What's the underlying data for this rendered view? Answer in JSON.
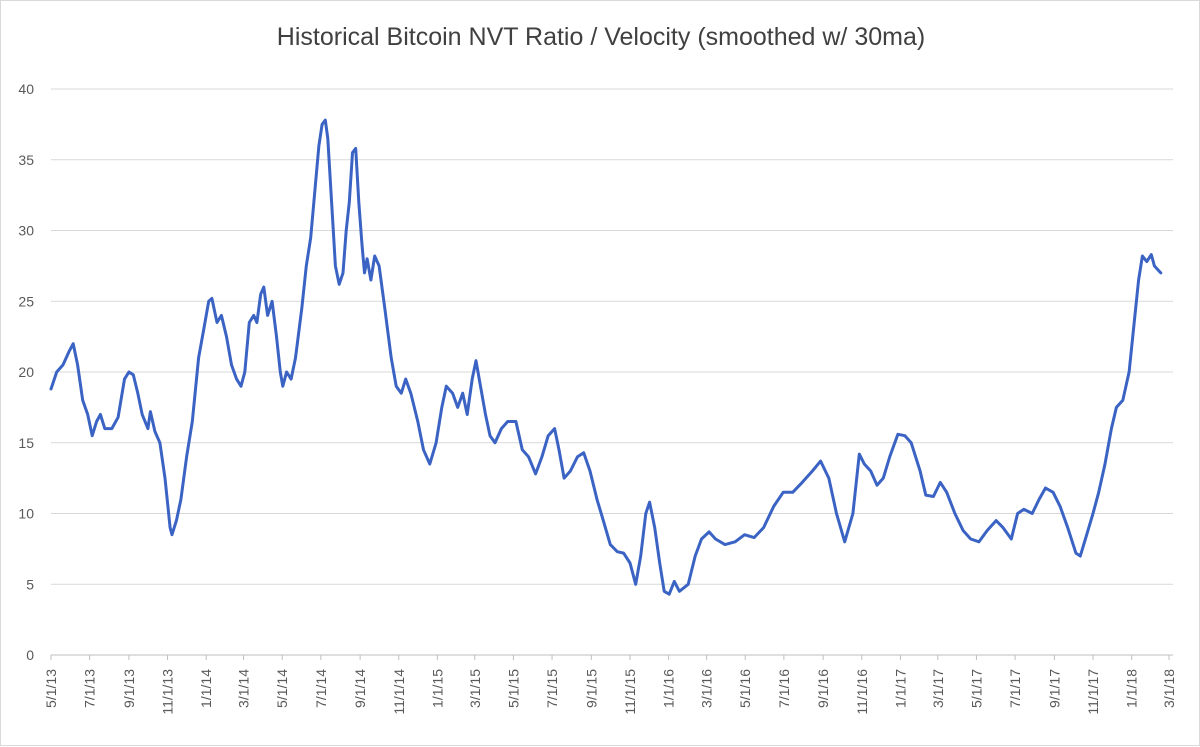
{
  "chart_data": {
    "type": "line",
    "title": "Historical Bitcoin NVT Ratio / Velocity (smoothed  w/ 30ma)",
    "xlabel": "",
    "ylabel": "",
    "ylim": [
      0,
      40
    ],
    "yticks": [
      0,
      5,
      10,
      15,
      20,
      25,
      30,
      35,
      40
    ],
    "xlim": [
      "2013-05-01",
      "2018-03-01"
    ],
    "xtick_labels": [
      "5/1/13",
      "7/1/13",
      "9/1/13",
      "11/1/13",
      "1/1/14",
      "3/1/14",
      "5/1/14",
      "7/1/14",
      "9/1/14",
      "11/1/14",
      "1/1/15",
      "3/1/15",
      "5/1/15",
      "7/1/15",
      "9/1/15",
      "11/1/15",
      "1/1/16",
      "3/1/16",
      "5/1/16",
      "7/1/16",
      "9/1/16",
      "11/1/16",
      "1/1/17",
      "3/1/17",
      "5/1/17",
      "7/1/17",
      "9/1/17",
      "11/1/17",
      "1/1/18",
      "3/1/18"
    ],
    "grid": true,
    "legend": "none",
    "series": [
      {
        "color": "#3a63c4",
        "points": [
          [
            "2013-05-01",
            18.8
          ],
          [
            "2013-05-10",
            20.0
          ],
          [
            "2013-05-20",
            20.5
          ],
          [
            "2013-05-30",
            21.5
          ],
          [
            "2013-06-05",
            22.0
          ],
          [
            "2013-06-12",
            20.5
          ],
          [
            "2013-06-20",
            18.0
          ],
          [
            "2013-06-28",
            17.0
          ],
          [
            "2013-07-05",
            15.5
          ],
          [
            "2013-07-12",
            16.5
          ],
          [
            "2013-07-18",
            17.0
          ],
          [
            "2013-07-25",
            16.0
          ],
          [
            "2013-08-05",
            16.0
          ],
          [
            "2013-08-15",
            16.8
          ],
          [
            "2013-08-25",
            19.5
          ],
          [
            "2013-09-01",
            20.0
          ],
          [
            "2013-09-08",
            19.8
          ],
          [
            "2013-09-15",
            18.5
          ],
          [
            "2013-09-22",
            17.0
          ],
          [
            "2013-10-01",
            16.0
          ],
          [
            "2013-10-05",
            17.2
          ],
          [
            "2013-10-12",
            15.8
          ],
          [
            "2013-10-20",
            15.0
          ],
          [
            "2013-10-28",
            12.5
          ],
          [
            "2013-11-05",
            9.0
          ],
          [
            "2013-11-08",
            8.5
          ],
          [
            "2013-11-15",
            9.5
          ],
          [
            "2013-11-22",
            11.0
          ],
          [
            "2013-12-01",
            14.0
          ],
          [
            "2013-12-10",
            16.5
          ],
          [
            "2013-12-20",
            21.0
          ],
          [
            "2013-12-28",
            23.0
          ],
          [
            "2014-01-05",
            25.0
          ],
          [
            "2014-01-10",
            25.2
          ],
          [
            "2014-01-18",
            23.5
          ],
          [
            "2014-01-25",
            24.0
          ],
          [
            "2014-02-02",
            22.5
          ],
          [
            "2014-02-10",
            20.5
          ],
          [
            "2014-02-18",
            19.5
          ],
          [
            "2014-02-25",
            19.0
          ],
          [
            "2014-03-03",
            20.0
          ],
          [
            "2014-03-10",
            23.5
          ],
          [
            "2014-03-17",
            24.0
          ],
          [
            "2014-03-22",
            23.5
          ],
          [
            "2014-03-28",
            25.5
          ],
          [
            "2014-04-02",
            26.0
          ],
          [
            "2014-04-08",
            24.0
          ],
          [
            "2014-04-15",
            25.0
          ],
          [
            "2014-04-22",
            22.5
          ],
          [
            "2014-04-28",
            20.0
          ],
          [
            "2014-05-02",
            19.0
          ],
          [
            "2014-05-08",
            20.0
          ],
          [
            "2014-05-15",
            19.5
          ],
          [
            "2014-05-22",
            21.0
          ],
          [
            "2014-06-01",
            24.5
          ],
          [
            "2014-06-08",
            27.5
          ],
          [
            "2014-06-15",
            29.5
          ],
          [
            "2014-06-22",
            33.0
          ],
          [
            "2014-06-28",
            36.0
          ],
          [
            "2014-07-03",
            37.5
          ],
          [
            "2014-07-08",
            37.8
          ],
          [
            "2014-07-12",
            36.5
          ],
          [
            "2014-07-18",
            32.0
          ],
          [
            "2014-07-24",
            27.5
          ],
          [
            "2014-07-30",
            26.2
          ],
          [
            "2014-08-05",
            27.0
          ],
          [
            "2014-08-10",
            30.0
          ],
          [
            "2014-08-15",
            32.0
          ],
          [
            "2014-08-20",
            35.5
          ],
          [
            "2014-08-25",
            35.8
          ],
          [
            "2014-08-30",
            32.0
          ],
          [
            "2014-09-04",
            29.0
          ],
          [
            "2014-09-08",
            27.0
          ],
          [
            "2014-09-12",
            28.0
          ],
          [
            "2014-09-18",
            26.5
          ],
          [
            "2014-09-24",
            28.2
          ],
          [
            "2014-10-01",
            27.5
          ],
          [
            "2014-10-10",
            24.5
          ],
          [
            "2014-10-20",
            21.0
          ],
          [
            "2014-10-28",
            19.0
          ],
          [
            "2014-11-05",
            18.5
          ],
          [
            "2014-11-12",
            19.5
          ],
          [
            "2014-11-20",
            18.5
          ],
          [
            "2014-12-01",
            16.5
          ],
          [
            "2014-12-10",
            14.5
          ],
          [
            "2014-12-20",
            13.5
          ],
          [
            "2014-12-30",
            15.0
          ],
          [
            "2015-01-08",
            17.5
          ],
          [
            "2015-01-15",
            19.0
          ],
          [
            "2015-01-25",
            18.5
          ],
          [
            "2015-02-02",
            17.5
          ],
          [
            "2015-02-10",
            18.5
          ],
          [
            "2015-02-17",
            17.0
          ],
          [
            "2015-02-25",
            19.5
          ],
          [
            "2015-03-03",
            20.8
          ],
          [
            "2015-03-10",
            19.0
          ],
          [
            "2015-03-18",
            17.0
          ],
          [
            "2015-03-25",
            15.5
          ],
          [
            "2015-04-02",
            15.0
          ],
          [
            "2015-04-12",
            16.0
          ],
          [
            "2015-04-22",
            16.5
          ],
          [
            "2015-05-05",
            16.5
          ],
          [
            "2015-05-15",
            14.5
          ],
          [
            "2015-05-25",
            14.0
          ],
          [
            "2015-06-05",
            12.8
          ],
          [
            "2015-06-15",
            14.0
          ],
          [
            "2015-06-25",
            15.5
          ],
          [
            "2015-07-05",
            16.0
          ],
          [
            "2015-07-12",
            14.5
          ],
          [
            "2015-07-20",
            12.5
          ],
          [
            "2015-07-30",
            13.0
          ],
          [
            "2015-08-10",
            14.0
          ],
          [
            "2015-08-20",
            14.3
          ],
          [
            "2015-08-30",
            13.0
          ],
          [
            "2015-09-10",
            11.0
          ],
          [
            "2015-09-20",
            9.5
          ],
          [
            "2015-10-01",
            7.8
          ],
          [
            "2015-10-12",
            7.3
          ],
          [
            "2015-10-22",
            7.2
          ],
          [
            "2015-11-01",
            6.5
          ],
          [
            "2015-11-10",
            5.0
          ],
          [
            "2015-11-18",
            7.0
          ],
          [
            "2015-11-26",
            10.0
          ],
          [
            "2015-12-02",
            10.8
          ],
          [
            "2015-12-10",
            9.0
          ],
          [
            "2015-12-18",
            6.5
          ],
          [
            "2015-12-25",
            4.5
          ],
          [
            "2016-01-02",
            4.3
          ],
          [
            "2016-01-10",
            5.2
          ],
          [
            "2016-01-18",
            4.5
          ],
          [
            "2016-02-01",
            5.0
          ],
          [
            "2016-02-12",
            7.0
          ],
          [
            "2016-02-22",
            8.2
          ],
          [
            "2016-03-05",
            8.7
          ],
          [
            "2016-03-15",
            8.2
          ],
          [
            "2016-03-30",
            7.8
          ],
          [
            "2016-04-15",
            8.0
          ],
          [
            "2016-04-30",
            8.5
          ],
          [
            "2016-05-15",
            8.3
          ],
          [
            "2016-05-30",
            9.0
          ],
          [
            "2016-06-15",
            10.5
          ],
          [
            "2016-06-30",
            11.5
          ],
          [
            "2016-07-15",
            11.5
          ],
          [
            "2016-07-30",
            12.2
          ],
          [
            "2016-08-15",
            13.0
          ],
          [
            "2016-08-28",
            13.7
          ],
          [
            "2016-09-10",
            12.5
          ],
          [
            "2016-09-22",
            10.0
          ],
          [
            "2016-10-05",
            8.0
          ],
          [
            "2016-10-18",
            10.0
          ],
          [
            "2016-10-28",
            14.2
          ],
          [
            "2016-11-05",
            13.5
          ],
          [
            "2016-11-15",
            13.0
          ],
          [
            "2016-11-25",
            12.0
          ],
          [
            "2016-12-05",
            12.5
          ],
          [
            "2016-12-15",
            14.0
          ],
          [
            "2016-12-28",
            15.6
          ],
          [
            "2017-01-08",
            15.5
          ],
          [
            "2017-01-18",
            15.0
          ],
          [
            "2017-02-01",
            13.0
          ],
          [
            "2017-02-10",
            11.3
          ],
          [
            "2017-02-22",
            11.2
          ],
          [
            "2017-03-05",
            12.2
          ],
          [
            "2017-03-15",
            11.5
          ],
          [
            "2017-03-28",
            10.0
          ],
          [
            "2017-04-10",
            8.8
          ],
          [
            "2017-04-22",
            8.2
          ],
          [
            "2017-05-05",
            8.0
          ],
          [
            "2017-05-18",
            8.8
          ],
          [
            "2017-06-01",
            9.5
          ],
          [
            "2017-06-12",
            9.0
          ],
          [
            "2017-06-25",
            8.2
          ],
          [
            "2017-07-05",
            10.0
          ],
          [
            "2017-07-15",
            10.3
          ],
          [
            "2017-07-28",
            10.0
          ],
          [
            "2017-08-08",
            11.0
          ],
          [
            "2017-08-18",
            11.8
          ],
          [
            "2017-08-30",
            11.5
          ],
          [
            "2017-09-10",
            10.5
          ],
          [
            "2017-09-22",
            9.0
          ],
          [
            "2017-10-05",
            7.2
          ],
          [
            "2017-10-12",
            7.0
          ],
          [
            "2017-10-22",
            8.5
          ],
          [
            "2017-11-01",
            10.0
          ],
          [
            "2017-11-10",
            11.5
          ],
          [
            "2017-11-20",
            13.5
          ],
          [
            "2017-11-30",
            16.0
          ],
          [
            "2017-12-08",
            17.5
          ],
          [
            "2017-12-18",
            18.0
          ],
          [
            "2017-12-28",
            20.0
          ],
          [
            "2018-01-05",
            23.5
          ],
          [
            "2018-01-12",
            26.5
          ],
          [
            "2018-01-18",
            28.2
          ],
          [
            "2018-01-25",
            27.8
          ],
          [
            "2018-02-01",
            28.3
          ],
          [
            "2018-02-06",
            27.5
          ],
          [
            "2018-02-12",
            27.2
          ],
          [
            "2018-02-16",
            27.0
          ]
        ]
      }
    ]
  }
}
